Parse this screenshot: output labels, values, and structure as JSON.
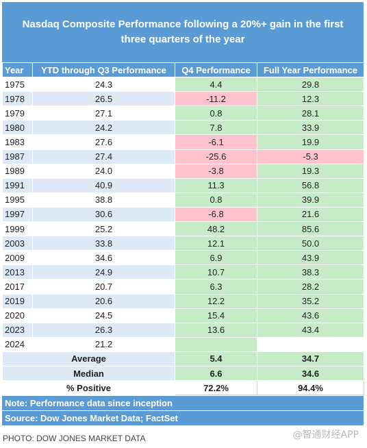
{
  "chart_data": {
    "type": "table",
    "title": "Nasdaq Composite Performance following a 20%+ gain in the first three quarters of the year",
    "columns": [
      "Year",
      "YTD through Q3 Performance",
      "Q4 Performance",
      "Full Year Performance"
    ],
    "rows": [
      [
        "1975",
        "24.3",
        "4.4",
        "29.8"
      ],
      [
        "1978",
        "26.5",
        "-11.2",
        "12.3"
      ],
      [
        "1979",
        "27.1",
        "0.8",
        "28.1"
      ],
      [
        "1980",
        "24.2",
        "7.8",
        "33.9"
      ],
      [
        "1983",
        "27.6",
        "-6.1",
        "19.9"
      ],
      [
        "1987",
        "27.4",
        "-25.6",
        "-5.3"
      ],
      [
        "1989",
        "24.0",
        "-3.8",
        "19.3"
      ],
      [
        "1991",
        "40.9",
        "11.3",
        "56.8"
      ],
      [
        "1995",
        "38.8",
        "0.8",
        "39.9"
      ],
      [
        "1997",
        "30.6",
        "-6.8",
        "21.6"
      ],
      [
        "1999",
        "25.2",
        "48.2",
        "85.6"
      ],
      [
        "2003",
        "33.8",
        "12.1",
        "50.0"
      ],
      [
        "2009",
        "34.6",
        "6.9",
        "43.9"
      ],
      [
        "2013",
        "24.9",
        "10.7",
        "38.3"
      ],
      [
        "2017",
        "20.7",
        "6.3",
        "28.2"
      ],
      [
        "2019",
        "20.6",
        "12.2",
        "35.2"
      ],
      [
        "2020",
        "24.5",
        "15.4",
        "43.6"
      ],
      [
        "2023",
        "26.3",
        "13.6",
        "43.4"
      ],
      [
        "2024",
        "21.2",
        "",
        ""
      ]
    ],
    "summary": [
      {
        "label": "Average",
        "q4": "5.4",
        "full_year": "34.7"
      },
      {
        "label": "Median",
        "q4": "6.6",
        "full_year": "34.6"
      },
      {
        "label": "% Positive",
        "q4": "72.2%",
        "full_year": "94.4%"
      }
    ],
    "note": "Note: Performance data since inception",
    "source": "Source: Dow Jones Market Data; FactSet"
  },
  "photo_credit": "PHOTO: DOW JONES MARKET DATA",
  "watermark": "@智通财经APP",
  "colors": {
    "header_blue": "#5b9bd5",
    "stripe_blue": "#dde9f5",
    "positive_green": "#c7ebc8",
    "negative_pink": "#ffc3cd"
  }
}
